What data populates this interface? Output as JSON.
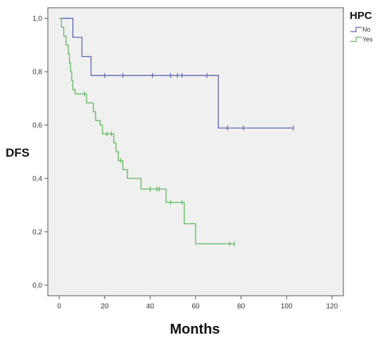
{
  "chart_data": {
    "type": "line",
    "subtype": "kaplan-meier step",
    "xlabel": "Months",
    "ylabel": "DFS",
    "xlim": [
      -5,
      125
    ],
    "ylim": [
      -0.04,
      1.04
    ],
    "x_ticks": [
      0,
      20,
      40,
      60,
      80,
      100,
      120
    ],
    "x_tick_labels": [
      "0",
      "20",
      "40",
      "60",
      "80",
      "100",
      "120"
    ],
    "y_ticks": [
      0.0,
      0.2,
      0.4,
      0.6,
      0.8,
      1.0
    ],
    "y_tick_labels": [
      "0,0",
      "0,2",
      "0,4",
      "0,6",
      "0,8",
      "1,0"
    ],
    "grid": false,
    "legend": {
      "title": "HPC",
      "position": "top-right"
    },
    "series": [
      {
        "name": "No",
        "color": "#5a64b4",
        "steps": [
          [
            0,
            1.0
          ],
          [
            6,
            0.929
          ],
          [
            10,
            0.857
          ],
          [
            14,
            0.786
          ],
          [
            70,
            0.589
          ],
          [
            103,
            0.589
          ]
        ],
        "censored": [
          [
            20,
            0.786
          ],
          [
            28,
            0.786
          ],
          [
            41,
            0.786
          ],
          [
            49,
            0.786
          ],
          [
            52,
            0.786
          ],
          [
            54,
            0.786
          ],
          [
            65,
            0.786
          ],
          [
            74,
            0.589
          ],
          [
            81,
            0.589
          ],
          [
            103,
            0.589
          ]
        ]
      },
      {
        "name": "Yes",
        "color": "#5cb85c",
        "steps": [
          [
            0,
            1.0
          ],
          [
            1,
            0.967
          ],
          [
            2,
            0.933
          ],
          [
            3,
            0.9
          ],
          [
            4,
            0.867
          ],
          [
            4.5,
            0.833
          ],
          [
            5,
            0.8
          ],
          [
            5.5,
            0.767
          ],
          [
            6,
            0.733
          ],
          [
            7,
            0.717
          ],
          [
            12,
            0.683
          ],
          [
            15,
            0.65
          ],
          [
            16,
            0.617
          ],
          [
            18,
            0.6
          ],
          [
            19,
            0.567
          ],
          [
            24,
            0.533
          ],
          [
            25,
            0.5
          ],
          [
            26,
            0.467
          ],
          [
            28,
            0.433
          ],
          [
            30,
            0.4
          ],
          [
            36,
            0.36
          ],
          [
            47,
            0.31
          ],
          [
            55,
            0.23
          ],
          [
            60,
            0.155
          ],
          [
            77,
            0.155
          ]
        ],
        "censored": [
          [
            11,
            0.717
          ],
          [
            21,
            0.567
          ],
          [
            23,
            0.567
          ],
          [
            27,
            0.467
          ],
          [
            40,
            0.36
          ],
          [
            43,
            0.36
          ],
          [
            44,
            0.36
          ],
          [
            49,
            0.31
          ],
          [
            54,
            0.31
          ],
          [
            75,
            0.155
          ],
          [
            77,
            0.155
          ]
        ]
      }
    ]
  }
}
